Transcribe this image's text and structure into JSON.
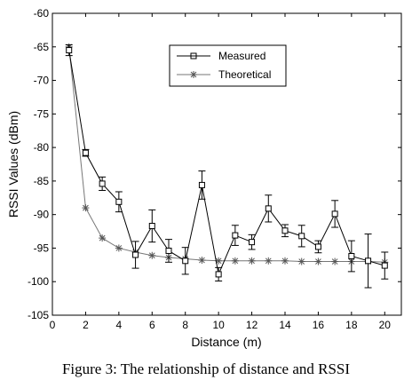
{
  "caption": "Figure 3: The relationship of distance and RSSI",
  "chart_data": {
    "type": "line",
    "xlabel": "Distance (m)",
    "ylabel": "RSSI Values (dBm)",
    "xlim": [
      0,
      21
    ],
    "ylim": [
      -105,
      -60
    ],
    "xticks": [
      0,
      2,
      4,
      6,
      8,
      10,
      12,
      14,
      16,
      18,
      20
    ],
    "yticks": [
      -60,
      -65,
      -70,
      -75,
      -80,
      -85,
      -90,
      -95,
      -100,
      -105
    ],
    "grid": false,
    "legend_position": "top-right",
    "x": [
      1,
      2,
      3,
      4,
      5,
      6,
      7,
      8,
      9,
      10,
      11,
      12,
      13,
      14,
      15,
      16,
      17,
      18,
      19,
      20
    ],
    "series": [
      {
        "name": "Measured",
        "marker": "square",
        "color": "#000000",
        "values": [
          -65.5,
          -80.8,
          -85.4,
          -88.1,
          -96.0,
          -91.7,
          -95.4,
          -96.9,
          -85.6,
          -98.9,
          -93.1,
          -94.1,
          -89.1,
          -92.4,
          -93.2,
          -94.8,
          -89.9,
          -96.2,
          -96.9,
          -97.6
        ],
        "error": [
          0.8,
          0.5,
          1.0,
          1.5,
          2.0,
          2.4,
          1.7,
          2.0,
          2.1,
          1.0,
          1.5,
          1.1,
          2.0,
          0.9,
          1.6,
          0.9,
          2.0,
          2.3,
          4.0,
          2.0
        ]
      },
      {
        "name": "Theoretical",
        "marker": "star",
        "color": "#777777",
        "values": [
          -65.0,
          -89.0,
          -93.5,
          -95.0,
          -95.6,
          -96.1,
          -96.4,
          -96.6,
          -96.8,
          -96.9,
          -96.9,
          -96.9,
          -96.9,
          -96.9,
          -97.0,
          -97.0,
          -97.0,
          -97.0,
          -97.0,
          -97.1
        ]
      }
    ]
  }
}
